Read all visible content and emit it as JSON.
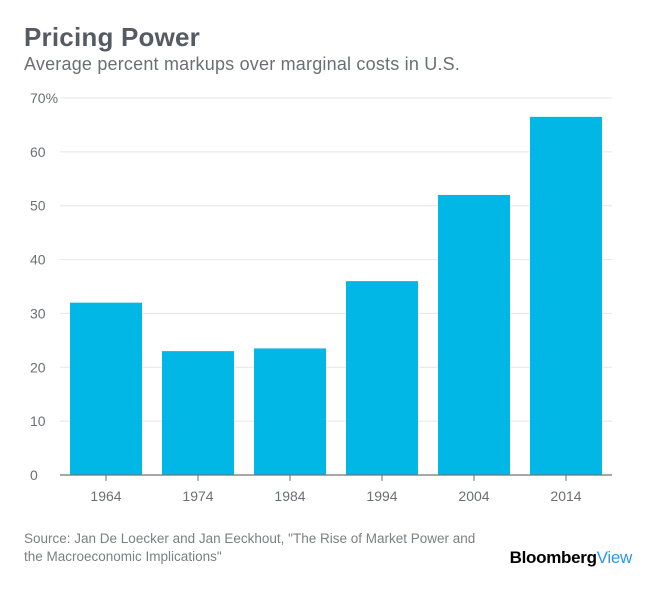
{
  "header": {
    "title": "Pricing Power",
    "subtitle": "Average percent markups over marginal costs in U.S."
  },
  "footer": {
    "source": "Source: Jan De Loecker and Jan Eeckhout, \"The Rise of Market Power and the Macroeconomic Implications\"",
    "brand_part1": "Bloomberg",
    "brand_part2": "View"
  },
  "colors": {
    "bar": "#00b7e6",
    "grid": "#e4e6e8",
    "axis": "#6e7378",
    "tick_text": "#6b6f75",
    "brand_accent": "#2b9be0"
  },
  "chart_data": {
    "type": "bar",
    "title": "Pricing Power",
    "subtitle": "Average percent markups over marginal costs in U.S.",
    "xlabel": "",
    "ylabel": "",
    "categories": [
      "1964",
      "1974",
      "1984",
      "1994",
      "2004",
      "2014"
    ],
    "values": [
      32,
      23,
      23.5,
      36,
      52,
      66.5
    ],
    "ylim": [
      0,
      70
    ],
    "yticks": [
      0,
      10,
      20,
      30,
      40,
      50,
      60,
      70
    ],
    "ytick_labels": [
      "0",
      "10",
      "20",
      "30",
      "40",
      "50",
      "60",
      "70%"
    ],
    "grid": true,
    "legend": "none"
  }
}
